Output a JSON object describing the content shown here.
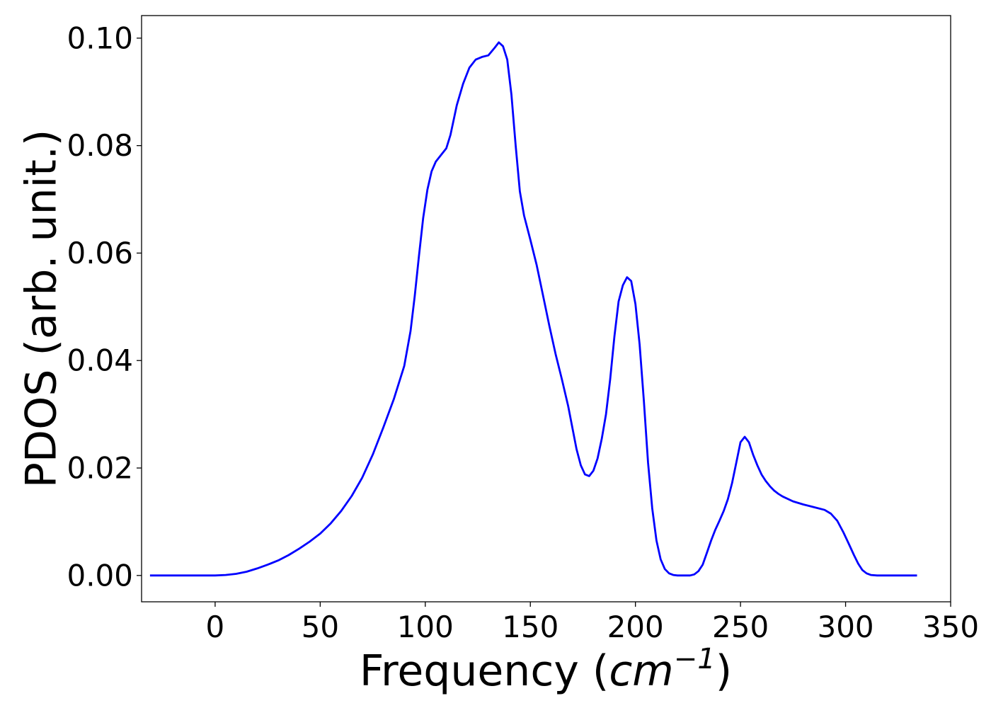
{
  "chart_data": {
    "type": "line",
    "title": "",
    "xlabel": {
      "prefix": "Frequency (",
      "unit_base": "cm",
      "unit_exponent": "−1",
      "suffix": ")"
    },
    "ylabel": "PDOS (arb. unit.)",
    "xlim": [
      -35,
      350
    ],
    "ylim": [
      -0.0049,
      0.1042
    ],
    "x_ticks": [
      0,
      50,
      100,
      150,
      200,
      250,
      300,
      350
    ],
    "x_tick_labels": [
      "0",
      "50",
      "100",
      "150",
      "200",
      "250",
      "300",
      "350"
    ],
    "y_ticks": [
      0.0,
      0.02,
      0.04,
      0.06,
      0.08,
      0.1
    ],
    "y_tick_labels": [
      "0.00",
      "0.02",
      "0.04",
      "0.06",
      "0.08",
      "0.10"
    ],
    "grid": false,
    "legend": false,
    "series": [
      {
        "color": "#0000ff",
        "x": [
          -31,
          -20,
          -10,
          0,
          5,
          10,
          15,
          20,
          25,
          30,
          35,
          40,
          45,
          50,
          55,
          60,
          65,
          70,
          75,
          80,
          85,
          90,
          93,
          95,
          97,
          99,
          101,
          103,
          105,
          107,
          110,
          112,
          115,
          118,
          121,
          124,
          127,
          130,
          133,
          135,
          137,
          139,
          141,
          143,
          145,
          147,
          150,
          153,
          156,
          159,
          162,
          165,
          168,
          170,
          172,
          174,
          176,
          178,
          180,
          182,
          184,
          186,
          188,
          190,
          192,
          194,
          196,
          198,
          200,
          202,
          204,
          206,
          208,
          210,
          212,
          214,
          216,
          218,
          220,
          222,
          224,
          226,
          228,
          230,
          232,
          234,
          236,
          238,
          240,
          242,
          244,
          246,
          248,
          250,
          252,
          254,
          256,
          258,
          260,
          262,
          264,
          266,
          268,
          270,
          275,
          280,
          285,
          290,
          293,
          296,
          299,
          302,
          304,
          306,
          308,
          310,
          312,
          315,
          320,
          334
        ],
        "y": [
          0.0,
          0.0,
          0.0,
          0.0,
          0.0001,
          0.0003,
          0.0007,
          0.0013,
          0.002,
          0.0028,
          0.0038,
          0.005,
          0.0063,
          0.0078,
          0.0097,
          0.012,
          0.0148,
          0.0182,
          0.0225,
          0.0275,
          0.0328,
          0.039,
          0.0455,
          0.052,
          0.0595,
          0.0665,
          0.0718,
          0.0752,
          0.077,
          0.078,
          0.0795,
          0.082,
          0.0875,
          0.0915,
          0.0945,
          0.096,
          0.0965,
          0.0968,
          0.0982,
          0.0992,
          0.0985,
          0.096,
          0.0895,
          0.08,
          0.0715,
          0.067,
          0.0625,
          0.0578,
          0.0522,
          0.0465,
          0.0412,
          0.0365,
          0.0315,
          0.0275,
          0.0235,
          0.0205,
          0.0188,
          0.0185,
          0.0195,
          0.0218,
          0.0255,
          0.03,
          0.0365,
          0.0445,
          0.051,
          0.054,
          0.0555,
          0.0548,
          0.0505,
          0.043,
          0.0325,
          0.021,
          0.0125,
          0.0065,
          0.003,
          0.0012,
          0.0004,
          0.0001,
          0.0,
          0.0,
          0.0,
          0.0,
          0.0002,
          0.0008,
          0.002,
          0.0042,
          0.0065,
          0.0085,
          0.0102,
          0.012,
          0.0142,
          0.0172,
          0.021,
          0.0248,
          0.0258,
          0.0248,
          0.0225,
          0.0205,
          0.0188,
          0.0176,
          0.0166,
          0.0158,
          0.0152,
          0.0147,
          0.0138,
          0.0132,
          0.0127,
          0.0122,
          0.0115,
          0.0102,
          0.008,
          0.0055,
          0.0038,
          0.0022,
          0.001,
          0.0004,
          0.0001,
          0.0,
          0.0,
          0.0
        ]
      }
    ]
  }
}
